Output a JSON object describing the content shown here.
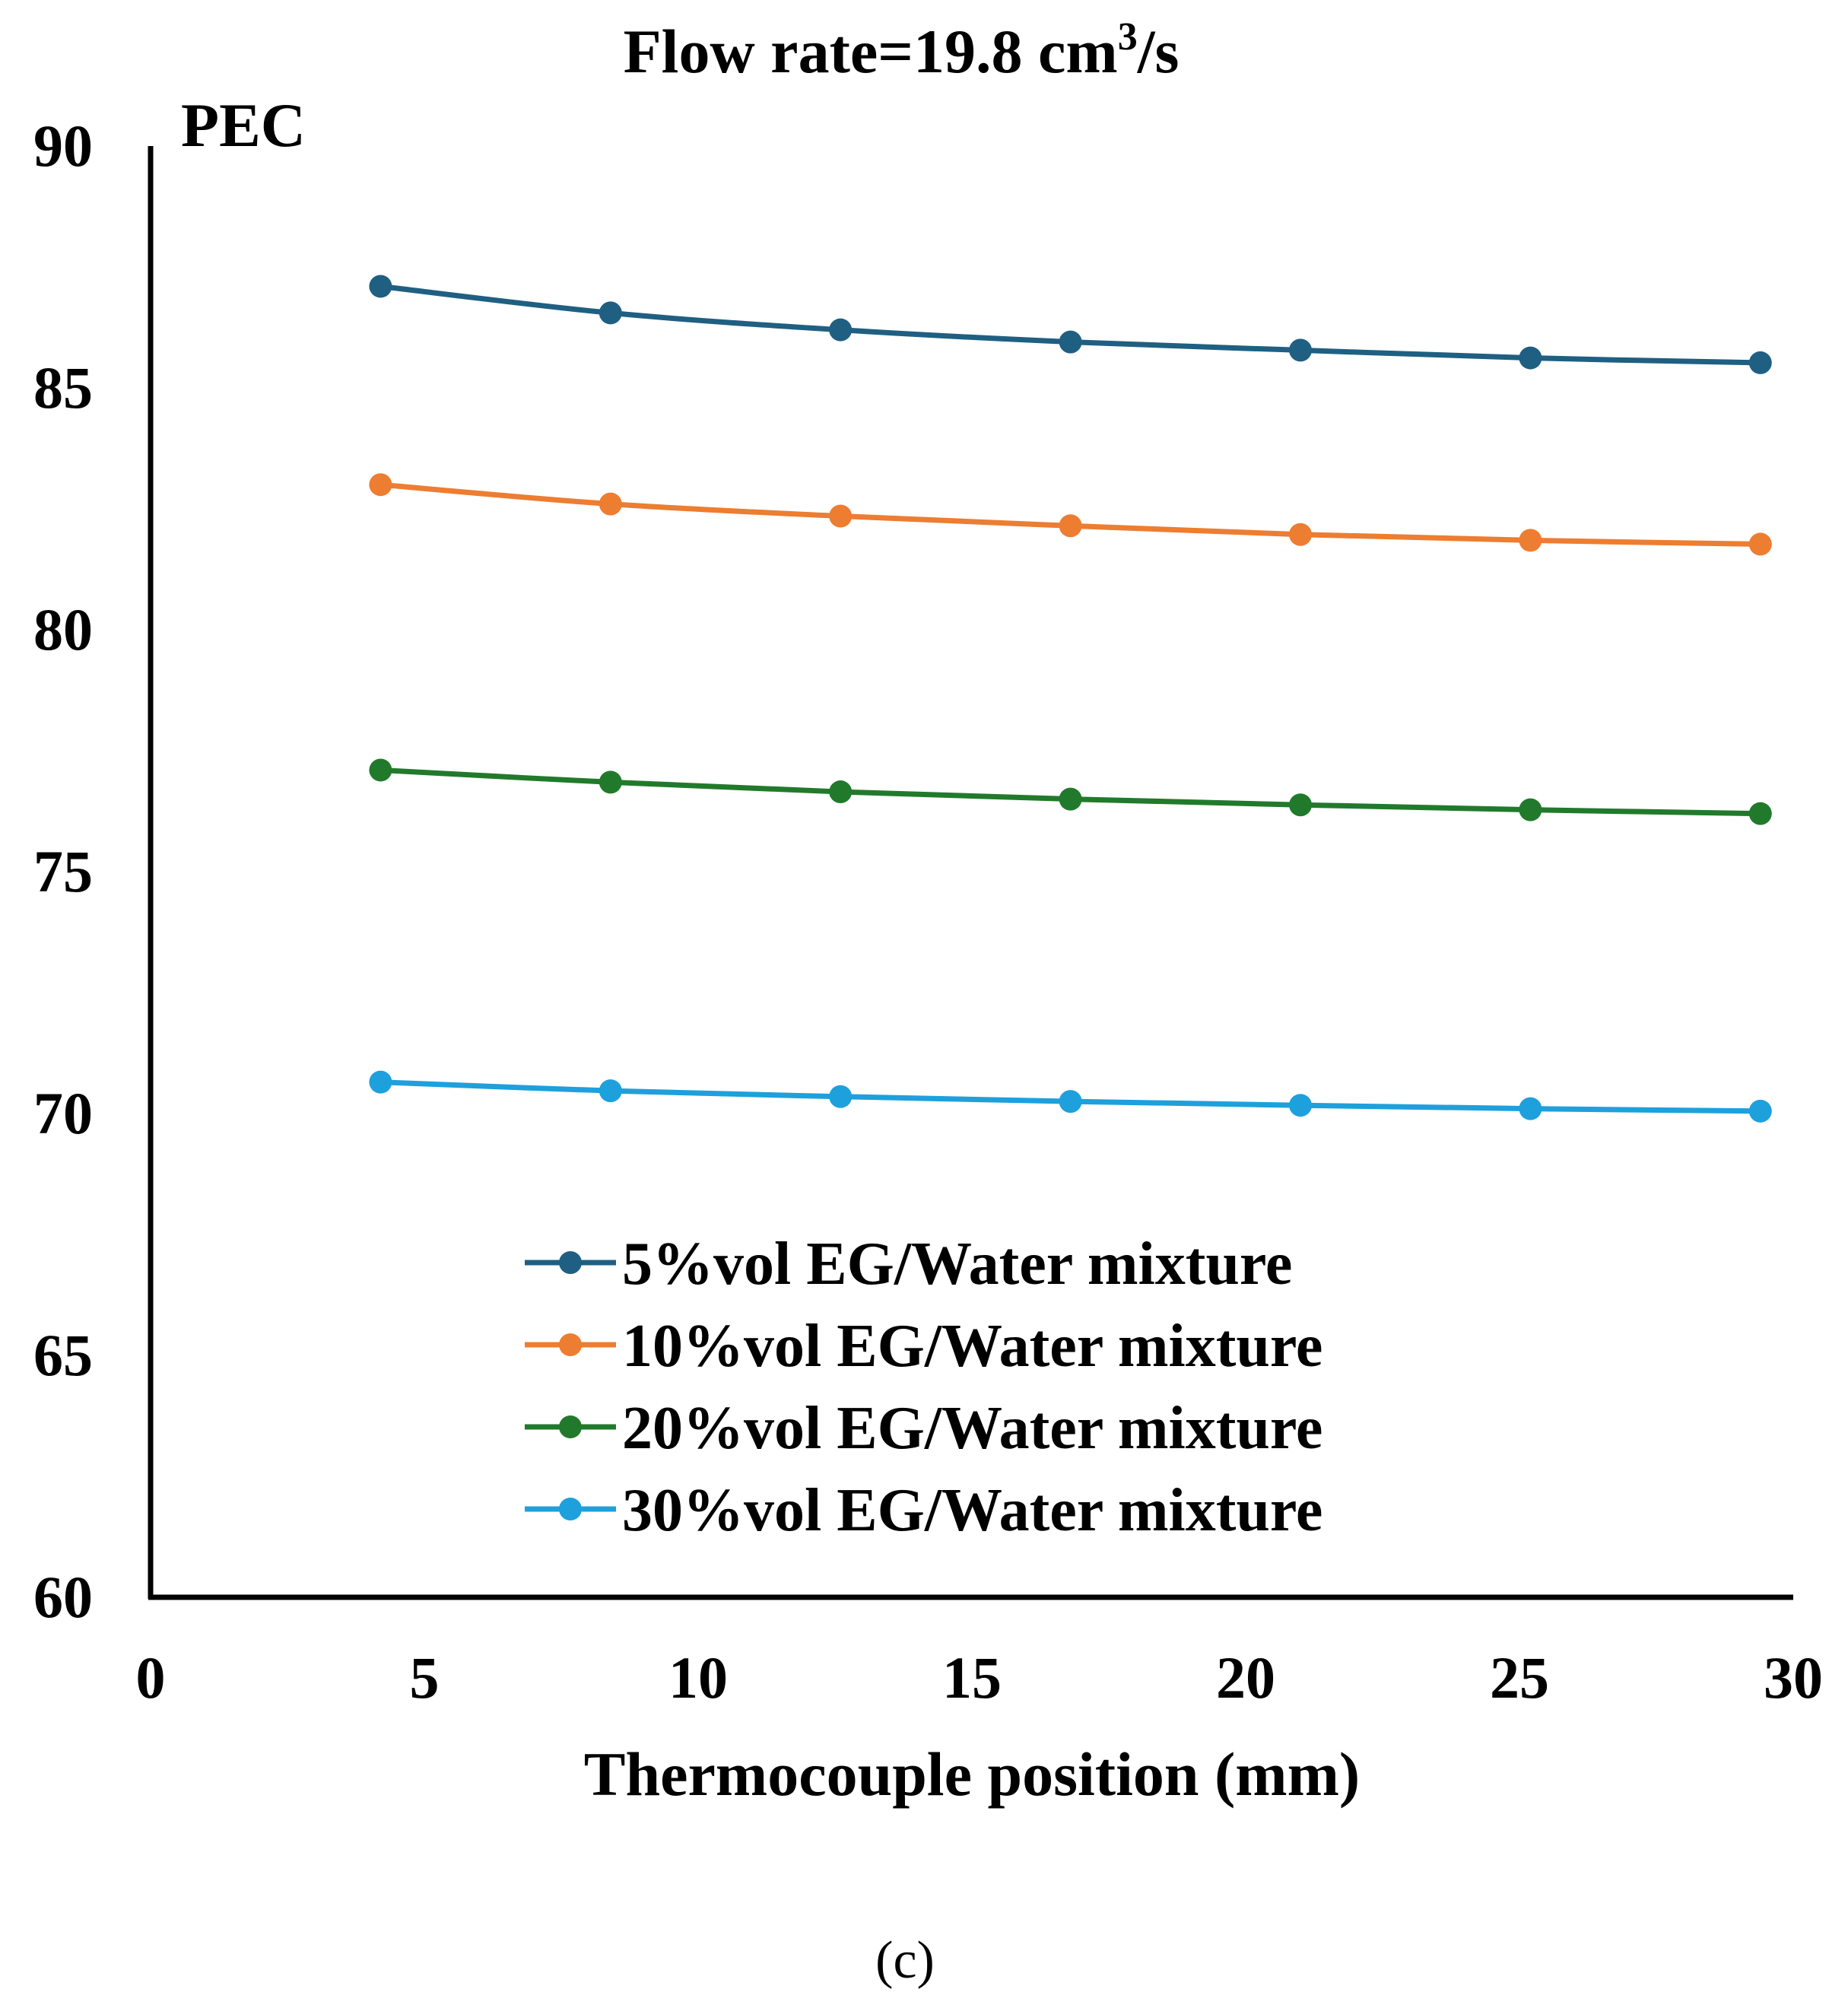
{
  "chart_data": {
    "type": "line",
    "title": "Flow rate=19.8 cm",
    "title_superscript": "3",
    "title_suffix": "/s",
    "ylabel": "PEC",
    "xlabel": "Thermocouple position (mm)",
    "caption": "(c)",
    "xlim": [
      0,
      30
    ],
    "ylim": [
      60,
      90
    ],
    "xticks": [
      0,
      5,
      10,
      15,
      20,
      25,
      30
    ],
    "yticks": [
      60,
      65,
      70,
      75,
      80,
      85,
      90
    ],
    "x": [
      4.2,
      8.4,
      12.6,
      16.8,
      21.0,
      25.2,
      29.4
    ],
    "legend_position": "lower-center",
    "series": [
      {
        "name": "5%vol EG/Water mixture",
        "color": "#1f5f82",
        "values": [
          87.1,
          86.55,
          86.2,
          85.95,
          85.78,
          85.62,
          85.52
        ]
      },
      {
        "name": "10%vol EG/Water mixture",
        "color": "#ed7d31",
        "values": [
          83.0,
          82.6,
          82.35,
          82.15,
          81.97,
          81.85,
          81.77
        ]
      },
      {
        "name": "20%vol EG/Water mixture",
        "color": "#217a2b",
        "values": [
          77.1,
          76.85,
          76.65,
          76.5,
          76.38,
          76.28,
          76.2
        ]
      },
      {
        "name": "30%vol EG/Water mixture",
        "color": "#1ea0dc",
        "values": [
          70.65,
          70.47,
          70.35,
          70.25,
          70.17,
          70.1,
          70.05
        ]
      }
    ]
  }
}
